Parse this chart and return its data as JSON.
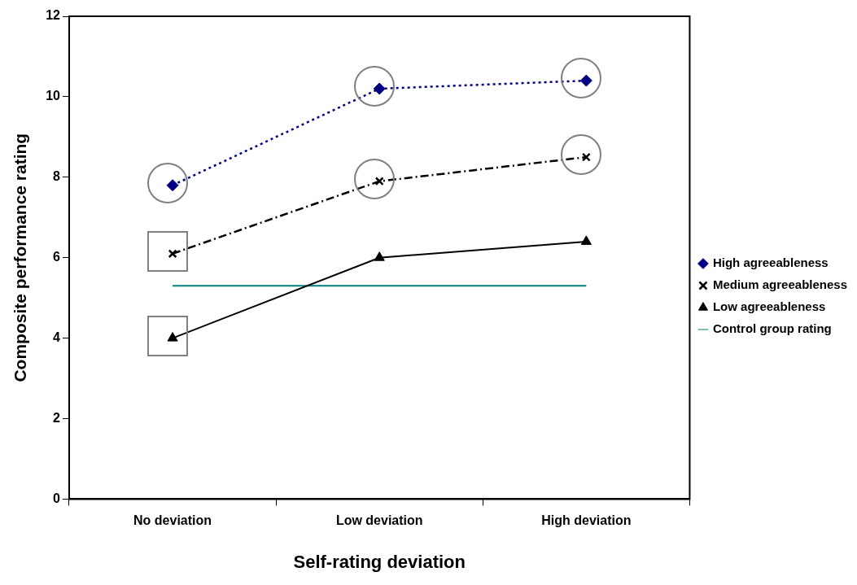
{
  "chart_data": {
    "type": "line",
    "xlabel": "Self-rating deviation",
    "ylabel": "Composite performance rating",
    "categories": [
      "No deviation",
      "Low deviation",
      "High deviation"
    ],
    "series": [
      {
        "name": "High agreeableness",
        "color": "#000080",
        "values": [
          7.8,
          10.2,
          10.4
        ],
        "marker": "diamond",
        "line_style": "dotted"
      },
      {
        "name": "Medium agreeableness",
        "color": "#000000",
        "values": [
          6.1,
          7.9,
          8.5
        ],
        "marker": "cross",
        "line_style": "dashdot"
      },
      {
        "name": "Low agreeableness",
        "color": "#000000",
        "values": [
          4.0,
          6.0,
          6.4
        ],
        "marker": "triangle",
        "line_style": "solid"
      },
      {
        "name": "Control group rating",
        "color": "#008080",
        "values": [
          5.3,
          5.3,
          5.3
        ],
        "marker": "none",
        "line_style": "solid"
      }
    ],
    "ylim": [
      0,
      12
    ],
    "yticks": [
      0,
      2,
      4,
      6,
      8,
      10,
      12
    ],
    "grid": false,
    "legend": "right"
  }
}
